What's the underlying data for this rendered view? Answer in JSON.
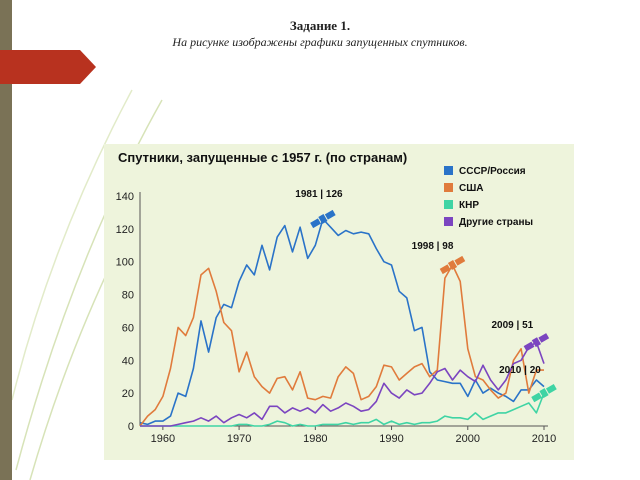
{
  "slide": {
    "task_title": "Задание 1.",
    "task_text": "На рисунке изображены графики запущенных спутников."
  },
  "chart_data": {
    "type": "line",
    "title": "Спутники, запущенные с 1957 г. (по странам)",
    "xlabel": "",
    "ylabel": "",
    "xlim": [
      1957,
      2010
    ],
    "ylim": [
      0,
      140
    ],
    "xticks": [
      1960,
      1970,
      1980,
      1990,
      2000,
      2010
    ],
    "yticks": [
      0,
      20,
      40,
      60,
      80,
      100,
      120,
      140
    ],
    "grid": false,
    "legend_position": "top-right",
    "x": [
      1957,
      1958,
      1959,
      1960,
      1961,
      1962,
      1963,
      1964,
      1965,
      1966,
      1967,
      1968,
      1969,
      1970,
      1971,
      1972,
      1973,
      1974,
      1975,
      1976,
      1977,
      1978,
      1979,
      1980,
      1981,
      1982,
      1983,
      1984,
      1985,
      1986,
      1987,
      1988,
      1989,
      1990,
      1991,
      1992,
      1993,
      1994,
      1995,
      1996,
      1997,
      1998,
      1999,
      2000,
      2001,
      2002,
      2003,
      2004,
      2005,
      2006,
      2007,
      2008,
      2009,
      2010
    ],
    "series": [
      {
        "name": "СССР/Россия",
        "color": "#2a73c8",
        "values": [
          2,
          1,
          3,
          3,
          6,
          20,
          18,
          35,
          64,
          45,
          66,
          74,
          72,
          88,
          98,
          92,
          110,
          95,
          115,
          122,
          106,
          121,
          102,
          110,
          126,
          121,
          116,
          119,
          117,
          118,
          117,
          108,
          100,
          98,
          82,
          78,
          58,
          60,
          33,
          28,
          27,
          26,
          26,
          18,
          28,
          20,
          23,
          20,
          18,
          15,
          22,
          22,
          28,
          24
        ]
      },
      {
        "name": "США",
        "color": "#e07b3c",
        "values": [
          0,
          6,
          10,
          18,
          35,
          60,
          55,
          66,
          92,
          96,
          82,
          63,
          58,
          33,
          45,
          30,
          24,
          20,
          29,
          30,
          22,
          33,
          17,
          16,
          18,
          17,
          30,
          36,
          32,
          16,
          18,
          24,
          37,
          36,
          28,
          32,
          36,
          38,
          30,
          34,
          90,
          98,
          88,
          47,
          30,
          28,
          22,
          17,
          20,
          40,
          47,
          20,
          34,
          34
        ]
      },
      {
        "name": "КНР",
        "color": "#3fd4a4",
        "values": [
          0,
          0,
          0,
          0,
          0,
          0,
          0,
          0,
          0,
          0,
          0,
          0,
          0,
          1,
          1,
          0,
          0,
          1,
          3,
          2,
          0,
          1,
          0,
          0,
          1,
          1,
          1,
          2,
          1,
          2,
          2,
          4,
          1,
          3,
          1,
          2,
          1,
          2,
          2,
          3,
          6,
          5,
          5,
          4,
          8,
          4,
          6,
          8,
          8,
          10,
          12,
          14,
          8,
          20
        ]
      },
      {
        "name": "Другие страны",
        "color": "#7b45c0",
        "values": [
          0,
          0,
          0,
          0,
          0,
          1,
          2,
          3,
          5,
          3,
          6,
          2,
          5,
          7,
          5,
          8,
          4,
          12,
          12,
          8,
          11,
          9,
          11,
          8,
          13,
          9,
          11,
          14,
          12,
          9,
          10,
          15,
          26,
          20,
          17,
          22,
          19,
          20,
          26,
          33,
          35,
          28,
          34,
          30,
          27,
          37,
          28,
          22,
          28,
          38,
          40,
          48,
          51,
          38
        ]
      }
    ],
    "annotations": [
      {
        "text": "1981 | 126",
        "x": 1981,
        "y": 126,
        "color": "#2a73c8"
      },
      {
        "text": "1998 | 98",
        "x": 1998,
        "y": 98,
        "color": "#e07b3c"
      },
      {
        "text": "2009 | 51",
        "x": 2009,
        "y": 51,
        "color": "#7b45c0"
      },
      {
        "text": "2010 | 20",
        "x": 2010,
        "y": 20,
        "color": "#3fd4a4"
      }
    ]
  }
}
